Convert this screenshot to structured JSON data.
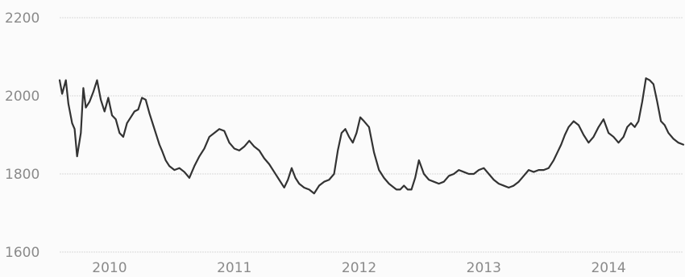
{
  "chart_data": {
    "type": "line",
    "title": "",
    "xlabel": "",
    "ylabel": "",
    "xlim": [
      2009.6,
      2014.6
    ],
    "ylim": [
      1600,
      2200
    ],
    "grid": true,
    "legend": "none",
    "y_ticks": [
      "1600",
      "1800",
      "2000",
      "2200"
    ],
    "x_ticks": [
      "2010",
      "2011",
      "2012",
      "2013",
      "2014"
    ],
    "line_color": "#333333",
    "series": [
      {
        "x": [
          2009.6,
          2009.62,
          2009.65,
          2009.67,
          2009.7,
          2009.72,
          2009.74,
          2009.77,
          2009.79,
          2009.81,
          2009.84,
          2009.87,
          2009.9,
          2009.93,
          2009.96,
          2009.99,
          2010.02,
          2010.05,
          2010.08,
          2010.11,
          2010.14,
          2010.17,
          2010.2,
          2010.23,
          2010.26,
          2010.29,
          2010.32,
          2010.35,
          2010.38,
          2010.4,
          2010.42,
          2010.45,
          2010.48,
          2010.52,
          2010.56,
          2010.6,
          2010.64,
          2010.68,
          2010.72,
          2010.76,
          2010.8,
          2010.84,
          2010.88,
          2010.92,
          2010.96,
          2011.0,
          2011.04,
          2011.08,
          2011.12,
          2011.16,
          2011.2,
          2011.24,
          2011.28,
          2011.32,
          2011.36,
          2011.4,
          2011.43,
          2011.46,
          2011.49,
          2011.52,
          2011.56,
          2011.6,
          2011.64,
          2011.68,
          2011.72,
          2011.76,
          2011.8,
          2011.83,
          2011.86,
          2011.89,
          2011.92,
          2011.95,
          2011.98,
          2012.01,
          2012.04,
          2012.08,
          2012.12,
          2012.16,
          2012.2,
          2012.24,
          2012.28,
          2012.3,
          2012.33,
          2012.36,
          2012.39,
          2012.42,
          2012.45,
          2012.48,
          2012.52,
          2012.56,
          2012.6,
          2012.64,
          2012.68,
          2012.72,
          2012.76,
          2012.8,
          2012.84,
          2012.88,
          2012.92,
          2012.96,
          2013.0,
          2013.04,
          2013.08,
          2013.12,
          2013.16,
          2013.2,
          2013.24,
          2013.28,
          2013.32,
          2013.36,
          2013.4,
          2013.44,
          2013.48,
          2013.52,
          2013.56,
          2013.59,
          2013.62,
          2013.65,
          2013.68,
          2013.72,
          2013.76,
          2013.8,
          2013.84,
          2013.88,
          2013.92,
          2013.96,
          2014.0,
          2014.04,
          2014.08,
          2014.12,
          2014.15,
          2014.18,
          2014.21,
          2014.24,
          2014.27,
          2014.3,
          2014.33,
          2014.36,
          2014.39,
          2014.42,
          2014.45,
          2014.48,
          2014.52,
          2014.56,
          2014.6
        ],
        "values": [
          2040,
          2005,
          2040,
          1980,
          1930,
          1915,
          1845,
          1905,
          2020,
          1970,
          1985,
          2010,
          2040,
          1990,
          1960,
          1995,
          1950,
          1940,
          1905,
          1895,
          1930,
          1945,
          1960,
          1965,
          1995,
          1990,
          1955,
          1925,
          1895,
          1875,
          1860,
          1835,
          1820,
          1810,
          1815,
          1805,
          1790,
          1820,
          1845,
          1865,
          1895,
          1905,
          1915,
          1910,
          1880,
          1865,
          1860,
          1870,
          1885,
          1870,
          1860,
          1840,
          1825,
          1805,
          1785,
          1765,
          1785,
          1815,
          1790,
          1775,
          1765,
          1760,
          1750,
          1770,
          1780,
          1785,
          1800,
          1860,
          1905,
          1915,
          1895,
          1880,
          1905,
          1945,
          1935,
          1920,
          1855,
          1810,
          1790,
          1775,
          1765,
          1760,
          1760,
          1770,
          1760,
          1760,
          1790,
          1835,
          1800,
          1785,
          1780,
          1775,
          1780,
          1795,
          1800,
          1810,
          1805,
          1800,
          1800,
          1810,
          1815,
          1800,
          1785,
          1775,
          1770,
          1765,
          1770,
          1780,
          1795,
          1810,
          1805,
          1810,
          1810,
          1815,
          1835,
          1855,
          1875,
          1900,
          1920,
          1935,
          1925,
          1900,
          1880,
          1895,
          1920,
          1940,
          1905,
          1895,
          1880,
          1895,
          1920,
          1930,
          1920,
          1935,
          1985,
          2045,
          2040,
          2030,
          1985,
          1935,
          1925,
          1905,
          1890,
          1880,
          1875
        ]
      }
    ]
  }
}
